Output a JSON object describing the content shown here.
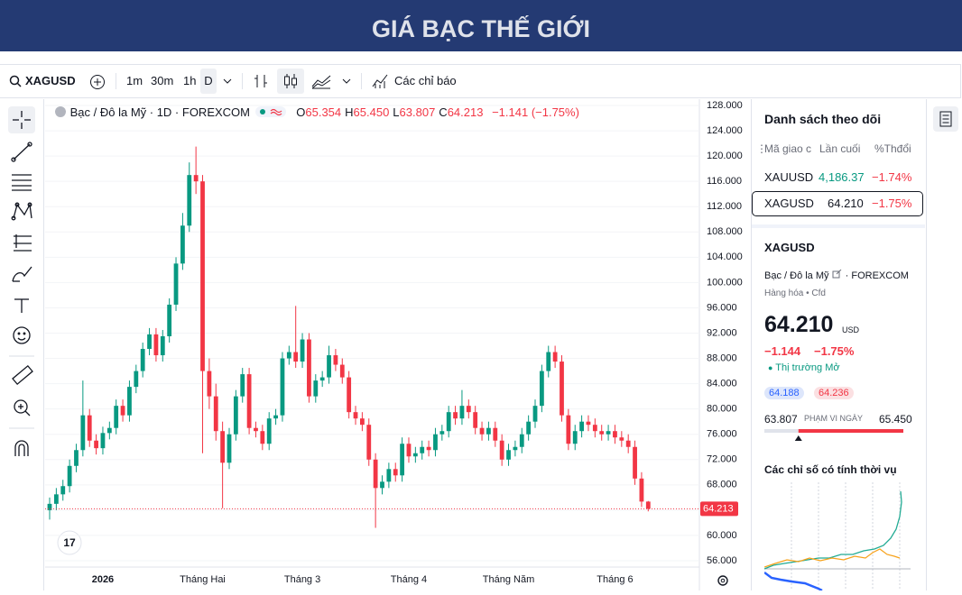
{
  "header": {
    "title": "GIÁ BẠC THẾ GIỚI"
  },
  "toolbar": {
    "symbol": "XAGUSD",
    "intervals": [
      "1m",
      "30m",
      "1h",
      "D"
    ],
    "indicators": "Các chỉ báo"
  },
  "chart_data": {
    "type": "candlestick",
    "symbol_description": "Bạc / Đô la Mỹ · 1D · FOREXCOM",
    "ohlc_legend": [
      {
        "label": "O",
        "value": "65.354"
      },
      {
        "label": "H",
        "value": "65.450"
      },
      {
        "label": "L",
        "value": "63.807"
      },
      {
        "label": "C",
        "value": "64.213"
      }
    ],
    "change": "−1.141 (−1.75%)",
    "categories": [
      null,
      null,
      null,
      null,
      null,
      null,
      null,
      null,
      "2026",
      null,
      null,
      null,
      null,
      null,
      null,
      null,
      null,
      null,
      null,
      null,
      null,
      null,
      null,
      "Tháng Hai",
      null,
      null,
      null,
      null,
      null,
      null,
      null,
      null,
      null,
      null,
      null,
      null,
      null,
      null,
      "Tháng 3",
      null,
      null,
      null,
      null,
      null,
      null,
      null,
      null,
      null,
      null,
      null,
      null,
      null,
      null,
      null,
      "Tháng 4",
      null,
      null,
      null,
      null,
      null,
      null,
      null,
      null,
      null,
      null,
      null,
      null,
      null,
      null,
      "Tháng Năm",
      null,
      null,
      null,
      null,
      null,
      null,
      null,
      null,
      null,
      null,
      null,
      null,
      null,
      null,
      null,
      "Tháng 6",
      null,
      null,
      null,
      null,
      null
    ],
    "open": [
      64,
      65,
      66.5,
      67.8,
      71,
      73.5,
      79,
      75,
      73.8,
      76.2,
      77,
      80.5,
      79,
      83.5,
      86,
      89.5,
      91.8,
      88.5,
      91.5,
      96.5,
      103,
      109,
      117,
      116,
      86,
      82,
      76.5,
      71.5,
      76,
      82,
      85.5,
      77,
      76.5,
      74.5,
      78.5,
      79,
      88,
      89,
      87.5,
      91,
      82,
      84.5,
      85,
      88.5,
      87,
      85,
      79.5,
      78.5,
      77.5,
      72,
      67.5,
      68.5,
      70.5,
      69.5,
      74.5,
      72.5,
      73,
      74,
      73.5,
      76,
      76.5,
      79.5,
      78.5,
      80.5,
      79.5,
      77,
      76,
      77,
      75,
      72,
      73.5,
      74,
      76,
      78,
      80.5,
      86,
      89,
      87.5,
      79,
      74.5,
      76.5,
      78,
      77.5,
      76.5,
      76,
      76.5,
      75.5,
      75,
      74,
      69,
      65.354
    ],
    "high": [
      66,
      67.5,
      68.8,
      72,
      74.5,
      84.5,
      80,
      76,
      77.2,
      78,
      81.5,
      81.5,
      84.5,
      87,
      90.5,
      92.8,
      92.8,
      92.5,
      97.5,
      104,
      111,
      119,
      121.5,
      117,
      88,
      84,
      78,
      77,
      83,
      86.5,
      86.5,
      78,
      77.5,
      79.5,
      80,
      89,
      90,
      96.3,
      92,
      92,
      85.5,
      86,
      90,
      89.5,
      88,
      86,
      80.5,
      79.5,
      78.5,
      73,
      69.5,
      71.5,
      71.5,
      75.5,
      75.5,
      74,
      75,
      75,
      77,
      77.5,
      80.5,
      80.5,
      83,
      81.5,
      80.5,
      78,
      78,
      78,
      76,
      74.5,
      75,
      77,
      79,
      81.5,
      87,
      90,
      90,
      88.5,
      80,
      77.5,
      79,
      79,
      78.5,
      77.5,
      77.5,
      77.5,
      76.5,
      76,
      75,
      70,
      65.45
    ],
    "low": [
      62.5,
      64,
      65.5,
      66.8,
      70,
      72.5,
      74,
      72.8,
      72.8,
      75.2,
      76,
      78,
      78,
      82.5,
      85,
      88.5,
      87.5,
      87.5,
      90.5,
      95.5,
      102,
      108,
      114,
      73,
      80,
      75,
      64.3,
      70.5,
      75,
      81,
      76,
      75.5,
      73.5,
      73.5,
      77.5,
      78,
      87,
      86.5,
      86.5,
      81,
      81,
      83.5,
      84,
      86,
      84,
      78.5,
      77.5,
      76.5,
      71,
      61.2,
      66.5,
      67.5,
      68.5,
      68.5,
      71.5,
      71.5,
      72,
      72.5,
      72.5,
      75,
      75.5,
      77.5,
      77.5,
      78.5,
      76,
      75,
      75,
      74,
      71,
      71,
      72.5,
      73,
      75,
      77,
      79.5,
      85,
      86.5,
      78,
      73.5,
      73.5,
      75.5,
      76.5,
      75.5,
      75,
      75,
      74.5,
      74,
      73,
      68,
      64.5,
      63.807
    ],
    "close": [
      65,
      66.5,
      67.8,
      71,
      73.5,
      79,
      75,
      73.8,
      76.2,
      77,
      80.5,
      79,
      83.5,
      86,
      89.5,
      91.8,
      88.5,
      91.5,
      96.5,
      103,
      109,
      117,
      116,
      86,
      82,
      76.5,
      71.5,
      76,
      82,
      85.5,
      77,
      76.5,
      74.5,
      78.5,
      79,
      88,
      89,
      87.5,
      91,
      82,
      84.5,
      85,
      88.5,
      87,
      85,
      79.5,
      78.5,
      77.5,
      72,
      67.5,
      68.5,
      70.5,
      69.5,
      74.5,
      72.5,
      73,
      74,
      73.5,
      76,
      76.5,
      79.5,
      78.5,
      80.5,
      79.5,
      77,
      76,
      77,
      75,
      72,
      73.5,
      74,
      76,
      78,
      80.5,
      86,
      89,
      87.5,
      79,
      74.5,
      76.5,
      78,
      77.5,
      76.5,
      76,
      76.5,
      75.5,
      75,
      74,
      69,
      65.354,
      64.213
    ],
    "ylim": [
      55,
      129
    ],
    "yticks": [
      {
        "value": 56,
        "label": "56.000"
      },
      {
        "value": 60,
        "label": "60.000"
      },
      {
        "value": 64,
        "label": "64.000"
      },
      {
        "value": 68,
        "label": "68.000"
      },
      {
        "value": 72,
        "label": "72.000"
      },
      {
        "value": 76,
        "label": "76.000"
      },
      {
        "value": 80,
        "label": "80.000"
      },
      {
        "value": 84,
        "label": "84.000"
      },
      {
        "value": 88,
        "label": "88.000"
      },
      {
        "value": 92,
        "label": "92.000"
      },
      {
        "value": 96,
        "label": "96.000"
      },
      {
        "value": 100,
        "label": "100.000"
      },
      {
        "value": 104,
        "label": "104.000"
      },
      {
        "value": 108,
        "label": "108.000"
      },
      {
        "value": 112,
        "label": "112.000"
      },
      {
        "value": 116,
        "label": "116.000"
      },
      {
        "value": 120,
        "label": "120.000"
      },
      {
        "value": 124,
        "label": "124.000"
      },
      {
        "value": 128,
        "label": "128.000"
      }
    ],
    "up_color": "#089981",
    "down_color": "#f23645",
    "grid": true
  },
  "watchlist": {
    "title": "Danh sách theo dõi",
    "columns": [
      "Mã giao c",
      "Lần cuối",
      "%Thđổi"
    ],
    "rows": [
      [
        "XAUUSD",
        "4,186.37",
        "−1.74%"
      ],
      [
        "XAGUSD",
        "64.210",
        "−1.75%"
      ]
    ]
  },
  "details": {
    "symbol": "XAGUSD",
    "description": "Bạc / Đô la Mỹ",
    "exchange": "· FOREXCOM",
    "tags": "Hàng hóa • Cfd",
    "price": "64.210",
    "currency": "USD",
    "change": "−1.144",
    "change_pct": "−1.75%",
    "status": "Thị trường Mở",
    "bid": "64.188",
    "ask": "64.236",
    "range_low": "63.807",
    "range_label": "PHẠM VI NGÀY",
    "range_high": "65.450",
    "seasonal_title": "Các chỉ số có tính thời vụ"
  }
}
